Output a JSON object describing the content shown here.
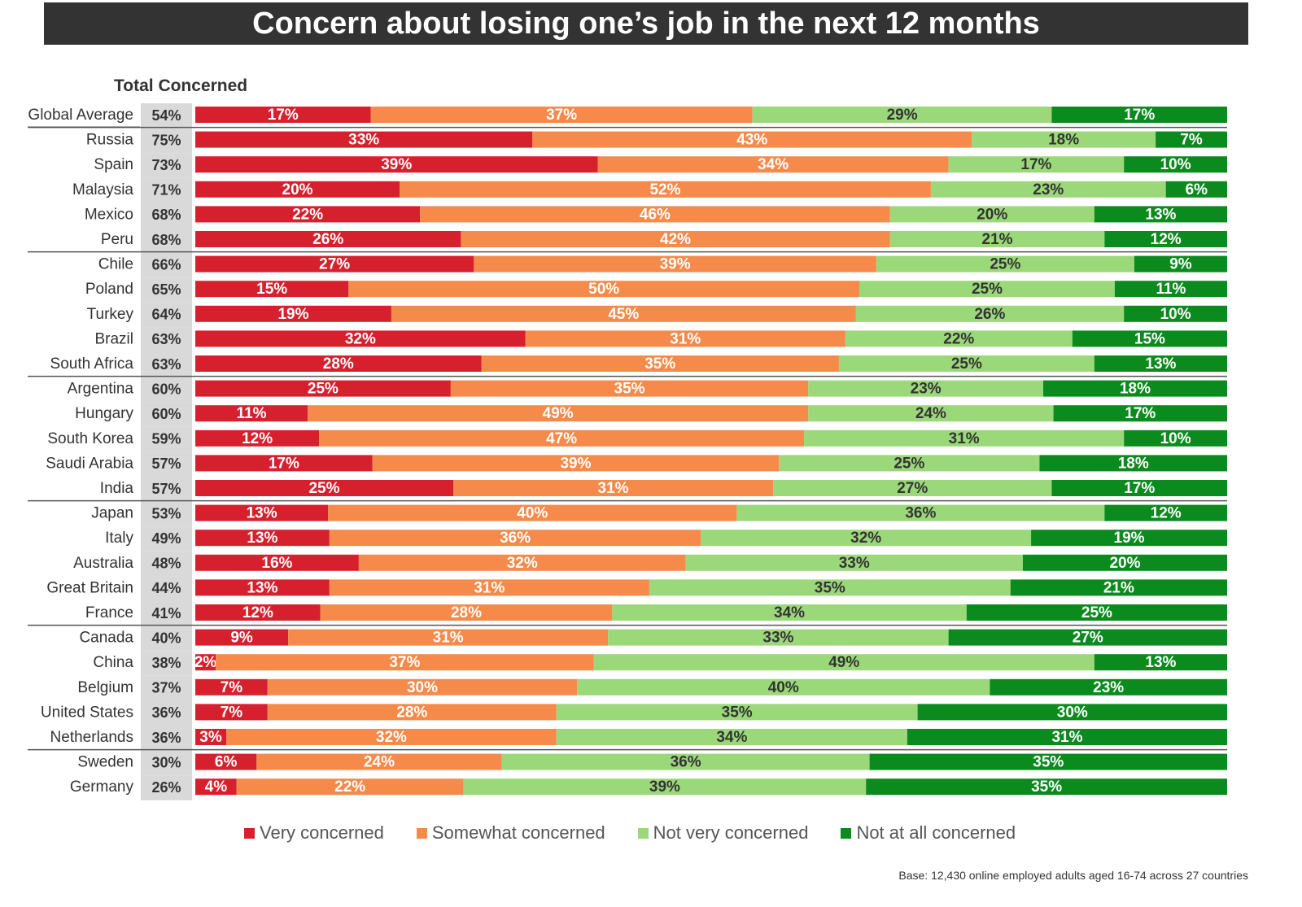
{
  "title": "Concern about losing one’s job in the next 12 months",
  "total_header": "Total Concerned",
  "base_note": "Base: 12,430 online employed adults aged 16-74 across 27 countries",
  "colors": {
    "very_concerned": "#d7202e",
    "somewhat_concerned": "#f58a4a",
    "not_very_concerned": "#9bd87a",
    "not_at_all_concerned": "#0b8a1e",
    "total_cell": "#d9d9d9"
  },
  "legend": [
    {
      "label": "Very concerned",
      "color": "#d7202e"
    },
    {
      "label": "Somewhat concerned",
      "color": "#f58a4a"
    },
    {
      "label": "Not very concerned",
      "color": "#9bd87a"
    },
    {
      "label": "Not at all concerned",
      "color": "#0b8a1e"
    }
  ],
  "chart_data": {
    "type": "bar",
    "orientation": "horizontal",
    "stacked": true,
    "normalized": "100%",
    "title": "Concern about losing one’s job in the next 12 months",
    "legend_position": "bottom",
    "grid": false,
    "categories": [
      "Global Average",
      "Russia",
      "Spain",
      "Malaysia",
      "Mexico",
      "Peru",
      "Chile",
      "Poland",
      "Turkey",
      "Brazil",
      "South Africa",
      "Argentina",
      "Hungary",
      "South Korea",
      "Saudi Arabia",
      "India",
      "Japan",
      "Italy",
      "Australia",
      "Great Britain",
      "France",
      "Canada",
      "China",
      "Belgium",
      "United States",
      "Netherlands",
      "Sweden",
      "Germany"
    ],
    "total_concerned": [
      "54%",
      "75%",
      "73%",
      "71%",
      "68%",
      "68%",
      "66%",
      "65%",
      "64%",
      "63%",
      "63%",
      "60%",
      "60%",
      "59%",
      "57%",
      "57%",
      "53%",
      "49%",
      "48%",
      "44%",
      "41%",
      "40%",
      "38%",
      "37%",
      "36%",
      "36%",
      "30%",
      "26%"
    ],
    "groups_after_rows": [
      0,
      5,
      10,
      15,
      20,
      25
    ],
    "series": [
      {
        "name": "Very concerned",
        "values": [
          17,
          33,
          39,
          20,
          22,
          26,
          27,
          15,
          19,
          32,
          28,
          25,
          11,
          12,
          17,
          25,
          13,
          13,
          16,
          13,
          12,
          9,
          2,
          7,
          7,
          3,
          6,
          4
        ]
      },
      {
        "name": "Somewhat concerned",
        "values": [
          37,
          43,
          34,
          52,
          46,
          42,
          39,
          50,
          45,
          31,
          35,
          35,
          49,
          47,
          39,
          31,
          40,
          36,
          32,
          31,
          28,
          31,
          37,
          30,
          28,
          32,
          24,
          22
        ]
      },
      {
        "name": "Not very concerned",
        "values": [
          29,
          18,
          17,
          23,
          20,
          21,
          25,
          25,
          26,
          22,
          25,
          23,
          24,
          31,
          25,
          27,
          36,
          32,
          33,
          35,
          34,
          33,
          49,
          40,
          35,
          34,
          36,
          39
        ]
      },
      {
        "name": "Not at all concerned",
        "values": [
          17,
          7,
          10,
          6,
          13,
          12,
          9,
          11,
          10,
          15,
          13,
          18,
          17,
          10,
          18,
          17,
          12,
          19,
          20,
          21,
          25,
          27,
          13,
          23,
          30,
          31,
          35,
          35
        ]
      }
    ]
  }
}
